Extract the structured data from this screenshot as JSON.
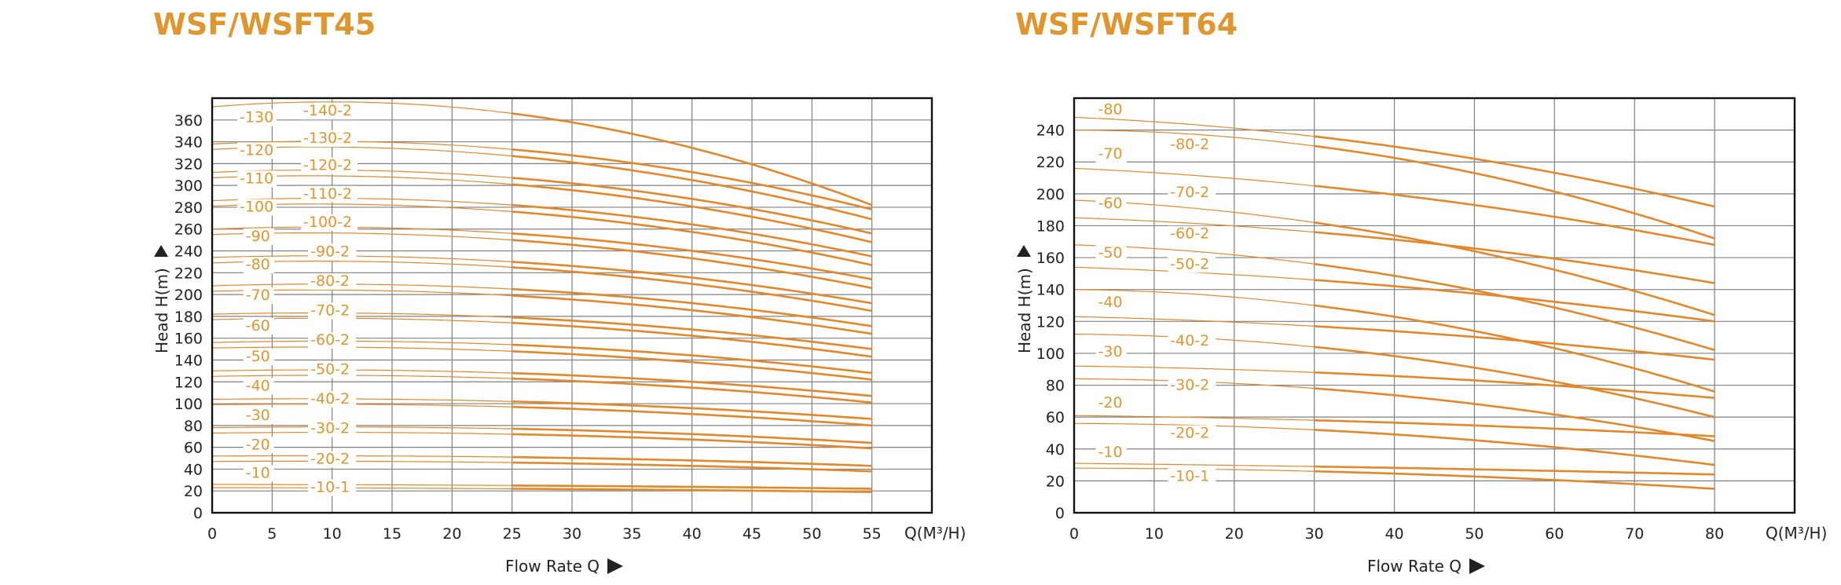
{
  "colors": {
    "accent": "#E0962E",
    "curve": "#E2882A",
    "grid": "#808080",
    "text": "#222222"
  },
  "chart_data": [
    {
      "type": "line",
      "title": "WSF/WSFT45",
      "xlabel": "Flow Rate Q",
      "ylabel": "Head H(m)",
      "x_unit": "Q(M³/H)",
      "xlim": [
        0,
        60
      ],
      "ylim": [
        0,
        380
      ],
      "xticks": [
        "0",
        "5",
        "10",
        "15",
        "20",
        "25",
        "30",
        "35",
        "40",
        "45",
        "50",
        "55"
      ],
      "yticks": [
        "0",
        "20",
        "40",
        "60",
        "80",
        "100",
        "120",
        "140",
        "160",
        "180",
        "200",
        "220",
        "240",
        "260",
        "280",
        "300",
        "320",
        "340",
        "360"
      ],
      "grid": true,
      "series": [
        {
          "name": "-10",
          "shutoff": 26,
          "x": [
            0,
            25,
            55
          ],
          "y": [
            26,
            25,
            22
          ]
        },
        {
          "name": "-20",
          "shutoff": 52,
          "x": [
            0,
            25,
            55
          ],
          "y": [
            52,
            51,
            43
          ]
        },
        {
          "name": "-30",
          "shutoff": 78,
          "x": [
            0,
            25,
            55
          ],
          "y": [
            78,
            77,
            64
          ]
        },
        {
          "name": "-40",
          "shutoff": 104,
          "x": [
            0,
            25,
            55
          ],
          "y": [
            104,
            102,
            86
          ]
        },
        {
          "name": "-50",
          "shutoff": 130,
          "x": [
            0,
            25,
            55
          ],
          "y": [
            130,
            128,
            107
          ]
        },
        {
          "name": "-60",
          "shutoff": 156,
          "x": [
            0,
            25,
            55
          ],
          "y": [
            156,
            154,
            128
          ]
        },
        {
          "name": "-70",
          "shutoff": 182,
          "x": [
            0,
            25,
            55
          ],
          "y": [
            182,
            179,
            150
          ]
        },
        {
          "name": "-80",
          "shutoff": 208,
          "x": [
            0,
            25,
            55
          ],
          "y": [
            208,
            205,
            171
          ]
        },
        {
          "name": "-90",
          "shutoff": 234,
          "x": [
            0,
            25,
            55
          ],
          "y": [
            234,
            230,
            192
          ]
        },
        {
          "name": "-100",
          "shutoff": 260,
          "x": [
            0,
            25,
            55
          ],
          "y": [
            260,
            256,
            214
          ]
        },
        {
          "name": "-110",
          "shutoff": 286,
          "x": [
            0,
            25,
            55
          ],
          "y": [
            286,
            282,
            235
          ]
        },
        {
          "name": "-120",
          "shutoff": 312,
          "x": [
            0,
            25,
            55
          ],
          "y": [
            312,
            307,
            256
          ]
        },
        {
          "name": "-130",
          "shutoff": 338,
          "x": [
            0,
            25,
            55
          ],
          "y": [
            338,
            333,
            278
          ]
        },
        {
          "name": "-10-1",
          "shutoff": 23,
          "x": [
            0,
            25,
            55
          ],
          "y": [
            23,
            22,
            19
          ]
        },
        {
          "name": "-20-2",
          "shutoff": 47,
          "x": [
            0,
            25,
            55
          ],
          "y": [
            47,
            46,
            38
          ]
        },
        {
          "name": "-30-2",
          "shutoff": 73,
          "x": [
            0,
            25,
            55
          ],
          "y": [
            73,
            72,
            59
          ]
        },
        {
          "name": "-40-2",
          "shutoff": 99,
          "x": [
            0,
            25,
            55
          ],
          "y": [
            99,
            97,
            80
          ]
        },
        {
          "name": "-50-2",
          "shutoff": 125,
          "x": [
            0,
            25,
            55
          ],
          "y": [
            125,
            123,
            101
          ]
        },
        {
          "name": "-60-2",
          "shutoff": 151,
          "x": [
            0,
            25,
            55
          ],
          "y": [
            151,
            148,
            122
          ]
        },
        {
          "name": "-70-2",
          "shutoff": 177,
          "x": [
            0,
            25,
            55
          ],
          "y": [
            177,
            174,
            143
          ]
        },
        {
          "name": "-80-2",
          "shutoff": 203,
          "x": [
            0,
            25,
            55
          ],
          "y": [
            203,
            199,
            164
          ]
        },
        {
          "name": "-90-2",
          "shutoff": 229,
          "x": [
            0,
            25,
            55
          ],
          "y": [
            229,
            225,
            185
          ]
        },
        {
          "name": "-100-2",
          "shutoff": 255,
          "x": [
            0,
            25,
            55
          ],
          "y": [
            255,
            250,
            206
          ]
        },
        {
          "name": "-110-2",
          "shutoff": 281,
          "x": [
            0,
            25,
            55
          ],
          "y": [
            281,
            276,
            227
          ]
        },
        {
          "name": "-120-2",
          "shutoff": 307,
          "x": [
            0,
            25,
            55
          ],
          "y": [
            307,
            301,
            248
          ]
        },
        {
          "name": "-130-2",
          "shutoff": 333,
          "x": [
            0,
            25,
            55
          ],
          "y": [
            333,
            327,
            269
          ]
        },
        {
          "name": "-140-2",
          "shutoff": 372,
          "x": [
            0,
            25,
            55
          ],
          "y": [
            372,
            366,
            282
          ]
        }
      ],
      "curve_labels": [
        {
          "text": "-130",
          "x": 2.3,
          "y": 358
        },
        {
          "text": "-120",
          "x": 2.3,
          "y": 328
        },
        {
          "text": "-110",
          "x": 2.3,
          "y": 302
        },
        {
          "text": "-100",
          "x": 2.3,
          "y": 276
        },
        {
          "text": "-90",
          "x": 2.8,
          "y": 249
        },
        {
          "text": "-80",
          "x": 2.8,
          "y": 223
        },
        {
          "text": "-70",
          "x": 2.8,
          "y": 195
        },
        {
          "text": "-60",
          "x": 2.8,
          "y": 167
        },
        {
          "text": "-50",
          "x": 2.8,
          "y": 139
        },
        {
          "text": "-40",
          "x": 2.8,
          "y": 112
        },
        {
          "text": "-30",
          "x": 2.8,
          "y": 85
        },
        {
          "text": "-20",
          "x": 2.8,
          "y": 58
        },
        {
          "text": "-10",
          "x": 2.8,
          "y": 32
        },
        {
          "text": "-140-2",
          "x": 7.6,
          "y": 364
        },
        {
          "text": "-130-2",
          "x": 7.6,
          "y": 339
        },
        {
          "text": "-120-2",
          "x": 7.6,
          "y": 314
        },
        {
          "text": "-110-2",
          "x": 7.6,
          "y": 288
        },
        {
          "text": "-100-2",
          "x": 7.6,
          "y": 262
        },
        {
          "text": "-90-2",
          "x": 8.2,
          "y": 235
        },
        {
          "text": "-80-2",
          "x": 8.2,
          "y": 208
        },
        {
          "text": "-70-2",
          "x": 8.2,
          "y": 181
        },
        {
          "text": "-60-2",
          "x": 8.2,
          "y": 154
        },
        {
          "text": "-50-2",
          "x": 8.2,
          "y": 127
        },
        {
          "text": "-40-2",
          "x": 8.2,
          "y": 100
        },
        {
          "text": "-30-2",
          "x": 8.2,
          "y": 73
        },
        {
          "text": "-20-2",
          "x": 8.2,
          "y": 45
        },
        {
          "text": "-10-1",
          "x": 8.2,
          "y": 19
        }
      ]
    },
    {
      "type": "line",
      "title": "WSF/WSFT64",
      "xlabel": "Flow Rate Q",
      "ylabel": "Head H(m)",
      "x_unit": "Q(M³/H)",
      "xlim": [
        0,
        90
      ],
      "ylim": [
        0,
        260
      ],
      "xticks": [
        "0",
        "10",
        "20",
        "30",
        "40",
        "50",
        "60",
        "70",
        "80"
      ],
      "yticks": [
        "0",
        "20",
        "40",
        "60",
        "80",
        "100",
        "120",
        "140",
        "160",
        "180",
        "200",
        "220",
        "240"
      ],
      "grid": true,
      "series": [
        {
          "name": "-10",
          "shutoff": 31,
          "x": [
            0,
            30,
            80
          ],
          "y": [
            31,
            29,
            24
          ]
        },
        {
          "name": "-20",
          "shutoff": 61,
          "x": [
            0,
            30,
            80
          ],
          "y": [
            61,
            58,
            48
          ]
        },
        {
          "name": "-30",
          "shutoff": 92,
          "x": [
            0,
            30,
            80
          ],
          "y": [
            92,
            88,
            72
          ]
        },
        {
          "name": "-40",
          "shutoff": 123,
          "x": [
            0,
            30,
            80
          ],
          "y": [
            123,
            117,
            96
          ]
        },
        {
          "name": "-50",
          "shutoff": 154,
          "x": [
            0,
            30,
            80
          ],
          "y": [
            154,
            146,
            120
          ]
        },
        {
          "name": "-60",
          "shutoff": 185,
          "x": [
            0,
            30,
            80
          ],
          "y": [
            185,
            176,
            144
          ]
        },
        {
          "name": "-70",
          "shutoff": 216,
          "x": [
            0,
            30,
            80
          ],
          "y": [
            216,
            205,
            168
          ]
        },
        {
          "name": "-80",
          "shutoff": 248,
          "x": [
            0,
            30,
            80
          ],
          "y": [
            248,
            236,
            192
          ]
        },
        {
          "name": "-10-1",
          "shutoff": 28,
          "x": [
            0,
            30,
            80
          ],
          "y": [
            28,
            26,
            15
          ]
        },
        {
          "name": "-20-2",
          "shutoff": 56,
          "x": [
            0,
            30,
            80
          ],
          "y": [
            56,
            52,
            30
          ]
        },
        {
          "name": "-30-2",
          "shutoff": 84,
          "x": [
            0,
            30,
            80
          ],
          "y": [
            84,
            78,
            45
          ]
        },
        {
          "name": "-40-2",
          "shutoff": 112,
          "x": [
            0,
            30,
            80
          ],
          "y": [
            112,
            104,
            60
          ]
        },
        {
          "name": "-50-2",
          "shutoff": 140,
          "x": [
            0,
            30,
            80
          ],
          "y": [
            140,
            130,
            76
          ]
        },
        {
          "name": "-60-2",
          "shutoff": 168,
          "x": [
            0,
            30,
            80
          ],
          "y": [
            168,
            156,
            102
          ]
        },
        {
          "name": "-70-2",
          "shutoff": 196,
          "x": [
            0,
            30,
            80
          ],
          "y": [
            196,
            182,
            124
          ]
        },
        {
          "name": "-80-2",
          "shutoff": 240,
          "x": [
            0,
            30,
            80
          ],
          "y": [
            240,
            230,
            172
          ]
        }
      ],
      "curve_labels": [
        {
          "text": "-80",
          "x": 3,
          "y": 250
        },
        {
          "text": "-70",
          "x": 3,
          "y": 222
        },
        {
          "text": "-60",
          "x": 3,
          "y": 191
        },
        {
          "text": "-50",
          "x": 3,
          "y": 160
        },
        {
          "text": "-40",
          "x": 3,
          "y": 129
        },
        {
          "text": "-30",
          "x": 3,
          "y": 98
        },
        {
          "text": "-20",
          "x": 3,
          "y": 66
        },
        {
          "text": "-10",
          "x": 3,
          "y": 35
        },
        {
          "text": "-80-2",
          "x": 12,
          "y": 228
        },
        {
          "text": "-70-2",
          "x": 12,
          "y": 198
        },
        {
          "text": "-60-2",
          "x": 12,
          "y": 172
        },
        {
          "text": "-50-2",
          "x": 12,
          "y": 153
        },
        {
          "text": "-40-2",
          "x": 12,
          "y": 105
        },
        {
          "text": "-30-2",
          "x": 12,
          "y": 77
        },
        {
          "text": "-20-2",
          "x": 12,
          "y": 47
        },
        {
          "text": "-10-1",
          "x": 12,
          "y": 20
        }
      ]
    }
  ]
}
